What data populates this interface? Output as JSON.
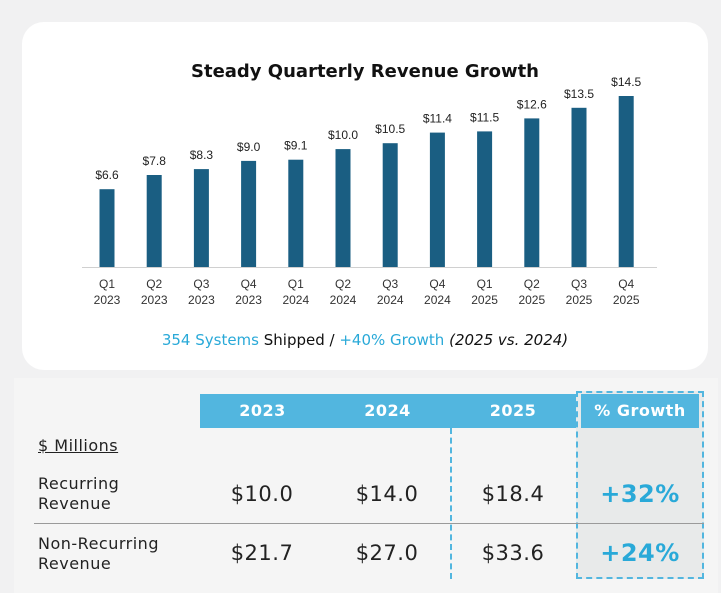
{
  "chart_data": {
    "type": "bar",
    "title": "Steady Quarterly Revenue Growth",
    "categories": [
      [
        "Q1",
        "2023"
      ],
      [
        "Q2",
        "2023"
      ],
      [
        "Q3",
        "2023"
      ],
      [
        "Q4",
        "2023"
      ],
      [
        "Q1",
        "2024"
      ],
      [
        "Q2",
        "2024"
      ],
      [
        "Q3",
        "2024"
      ],
      [
        "Q4",
        "2024"
      ],
      [
        "Q1",
        "2025"
      ],
      [
        "Q2",
        "2025"
      ],
      [
        "Q3",
        "2025"
      ],
      [
        "Q4",
        "2025"
      ]
    ],
    "values": [
      6.6,
      7.8,
      8.3,
      9.0,
      9.1,
      10.0,
      10.5,
      11.4,
      11.5,
      12.6,
      13.5,
      14.5
    ],
    "data_labels": [
      "$6.6",
      "$7.8",
      "$8.3",
      "$9.0",
      "$9.1",
      "$10.0",
      "$10.5",
      "$11.4",
      "$11.5",
      "$12.6",
      "$13.5",
      "$14.5"
    ],
    "ylim": [
      0,
      14.5
    ],
    "xlabel": "",
    "ylabel": "",
    "grid": false,
    "bar_color": "#1a5e82"
  },
  "caption": {
    "systems": "354 Systems",
    "shipped": " Shipped / ",
    "growth": "+40% Growth",
    "period": " (2025 vs. 2024)"
  },
  "table": {
    "headers": [
      "2023",
      "2024",
      "2025",
      "% Growth"
    ],
    "units": "$ Millions",
    "rows": [
      {
        "label_line1": "Recurring",
        "label_line2": "Revenue",
        "values": [
          "$10.0",
          "$14.0",
          "$18.4"
        ],
        "growth": "+32%"
      },
      {
        "label_line1": "Non-Recurring",
        "label_line2": "Revenue",
        "values": [
          "$21.7",
          "$27.0",
          "$33.6"
        ],
        "growth": "+24%"
      }
    ]
  },
  "colors": {
    "accent": "#29a9d8",
    "header_bg": "#52b6df",
    "bar": "#1a5e82"
  }
}
